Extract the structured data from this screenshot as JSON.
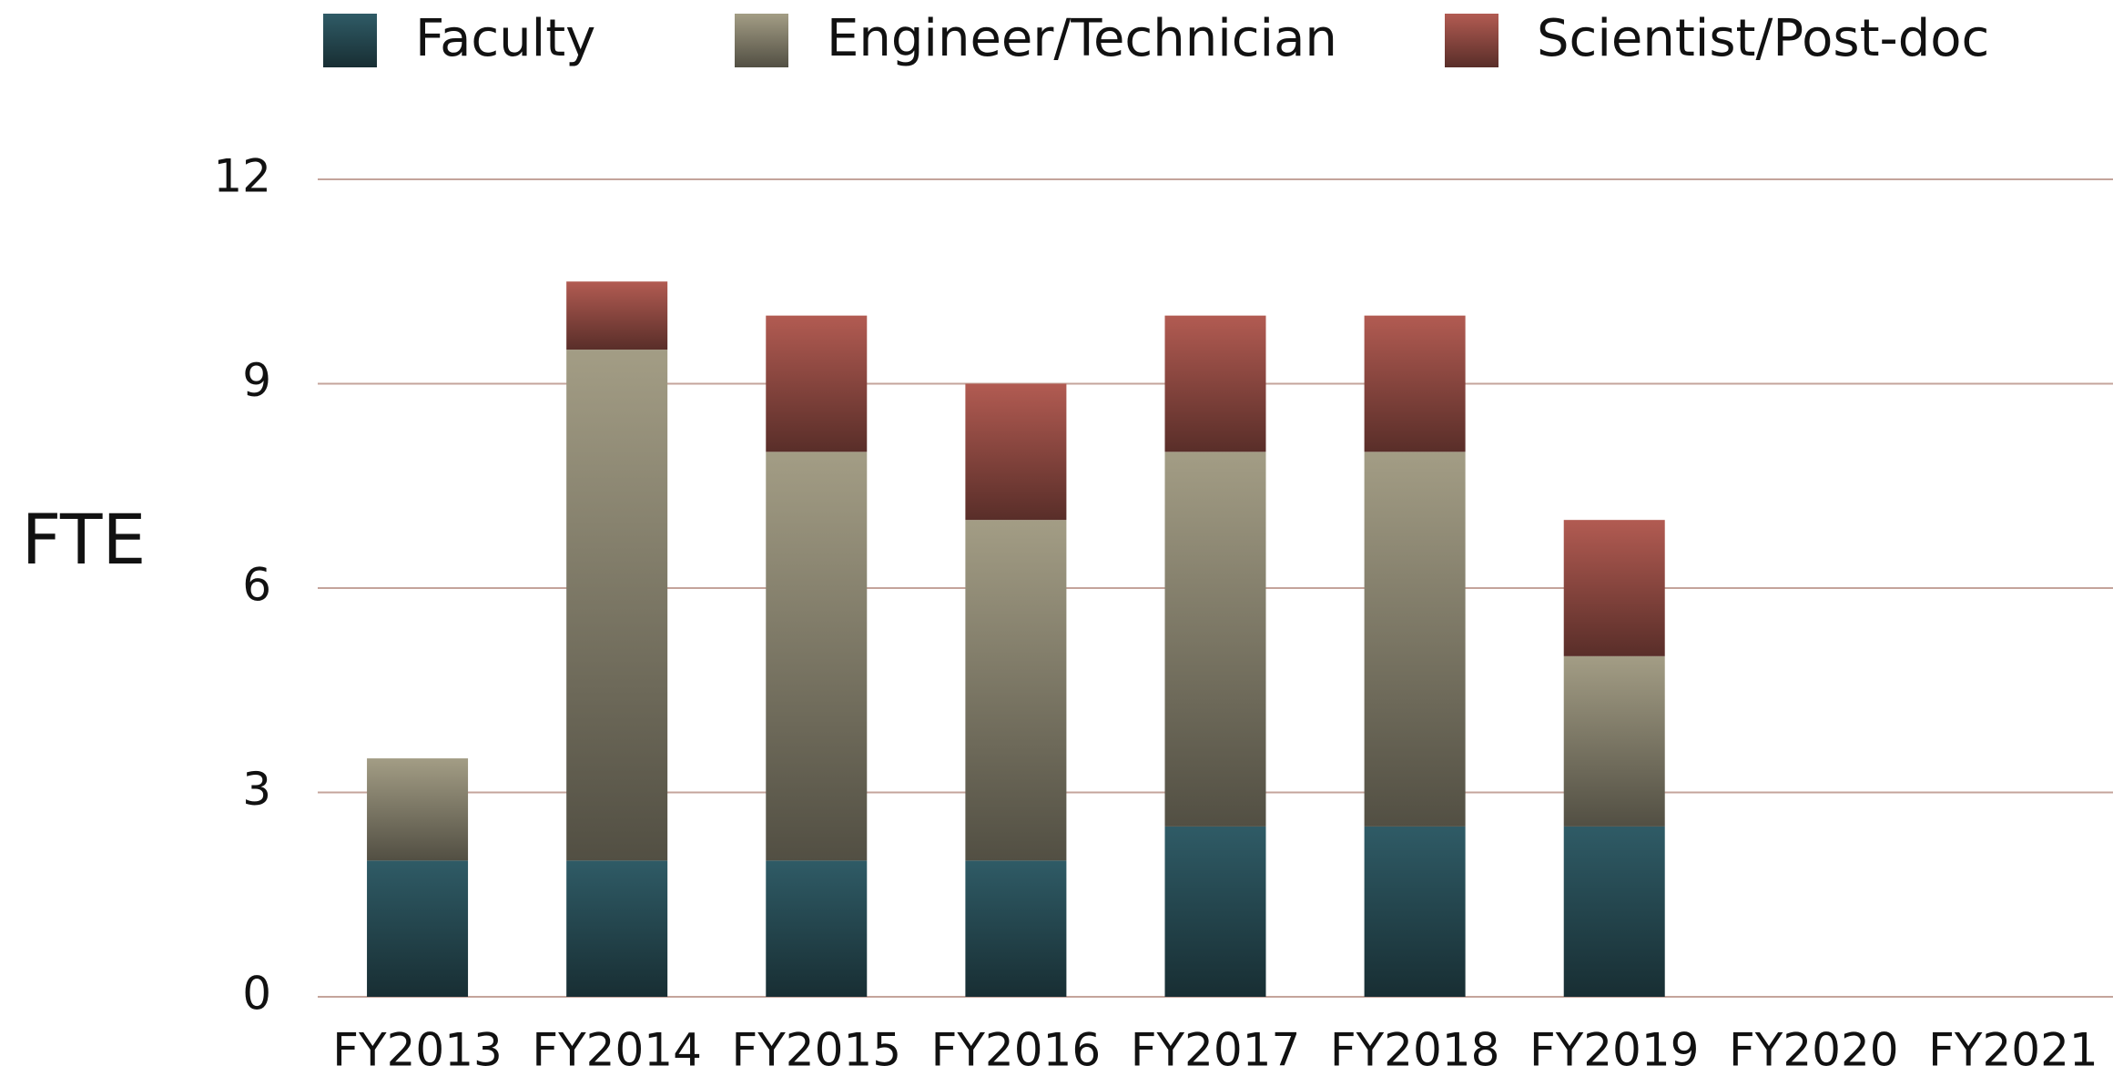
{
  "chart_data": {
    "type": "stacked_bar",
    "ylabel": "FTE",
    "categories": [
      "FY2013",
      "FY2014",
      "FY2015",
      "FY2016",
      "FY2017",
      "FY2018",
      "FY2019",
      "FY2020",
      "FY2021"
    ],
    "series": [
      {
        "name": "Faculty",
        "color": "#2f5b66",
        "values": [
          2,
          2,
          2,
          2,
          2.5,
          2.5,
          2.5,
          null,
          null
        ]
      },
      {
        "name": "Engineer/Technician",
        "color": "#a39d85",
        "values": [
          1.5,
          7.5,
          6,
          5,
          5.5,
          5.5,
          2.5,
          null,
          null
        ]
      },
      {
        "name": "Scientist/Post-doc",
        "color": "#b25b52",
        "values": [
          0,
          1,
          2,
          2,
          2,
          2,
          2,
          null,
          null
        ]
      }
    ],
    "ylim": [
      0,
      12
    ],
    "yticks": [
      0,
      3,
      6,
      9,
      12
    ],
    "grid": true,
    "legend": "top"
  }
}
